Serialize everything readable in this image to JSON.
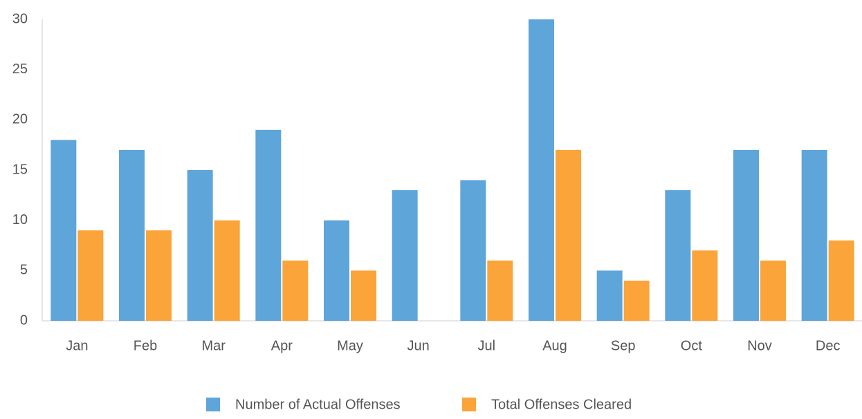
{
  "chart_data": {
    "type": "bar",
    "categories": [
      "Jan",
      "Feb",
      "Mar",
      "Apr",
      "May",
      "Jun",
      "Jul",
      "Aug",
      "Sep",
      "Oct",
      "Nov",
      "Dec"
    ],
    "series": [
      {
        "name": "Number of Actual Offenses",
        "color": "#5ea5da",
        "values": [
          18,
          17,
          15,
          19,
          10,
          13,
          14,
          30,
          5,
          13,
          17,
          17
        ]
      },
      {
        "name": "Total Offenses Cleared",
        "color": "#fba43a",
        "values": [
          9,
          9,
          10,
          6,
          5,
          0,
          6,
          17,
          4,
          7,
          6,
          8
        ]
      }
    ],
    "ylim": [
      0,
      30
    ],
    "yticks": [
      0,
      5,
      10,
      15,
      20,
      25,
      30
    ],
    "grid": false,
    "legend": "bottom"
  }
}
